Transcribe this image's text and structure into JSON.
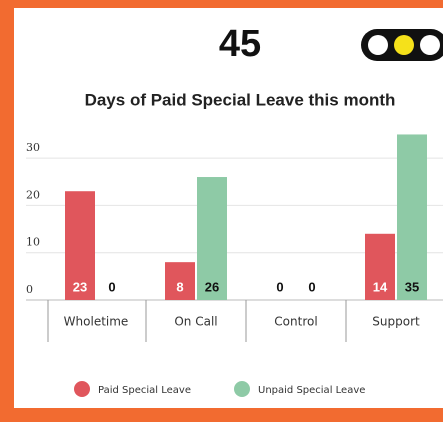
{
  "kpi": {
    "value": 45
  },
  "chart_data": {
    "type": "bar",
    "title": "Days of Paid Special Leave this month",
    "categories": [
      "Wholetime",
      "On Call",
      "Control",
      "Support"
    ],
    "series": [
      {
        "name": "Paid Special Leave",
        "color": "#e0565c",
        "values": [
          23,
          8,
          0,
          14
        ]
      },
      {
        "name": "Unpaid Special Leave",
        "color": "#8ecaa6",
        "values": [
          0,
          26,
          0,
          35
        ]
      }
    ],
    "ylim": [
      0,
      37
    ],
    "yticks": [
      0,
      10,
      20,
      30
    ],
    "grid": true,
    "legend": "bottom"
  }
}
